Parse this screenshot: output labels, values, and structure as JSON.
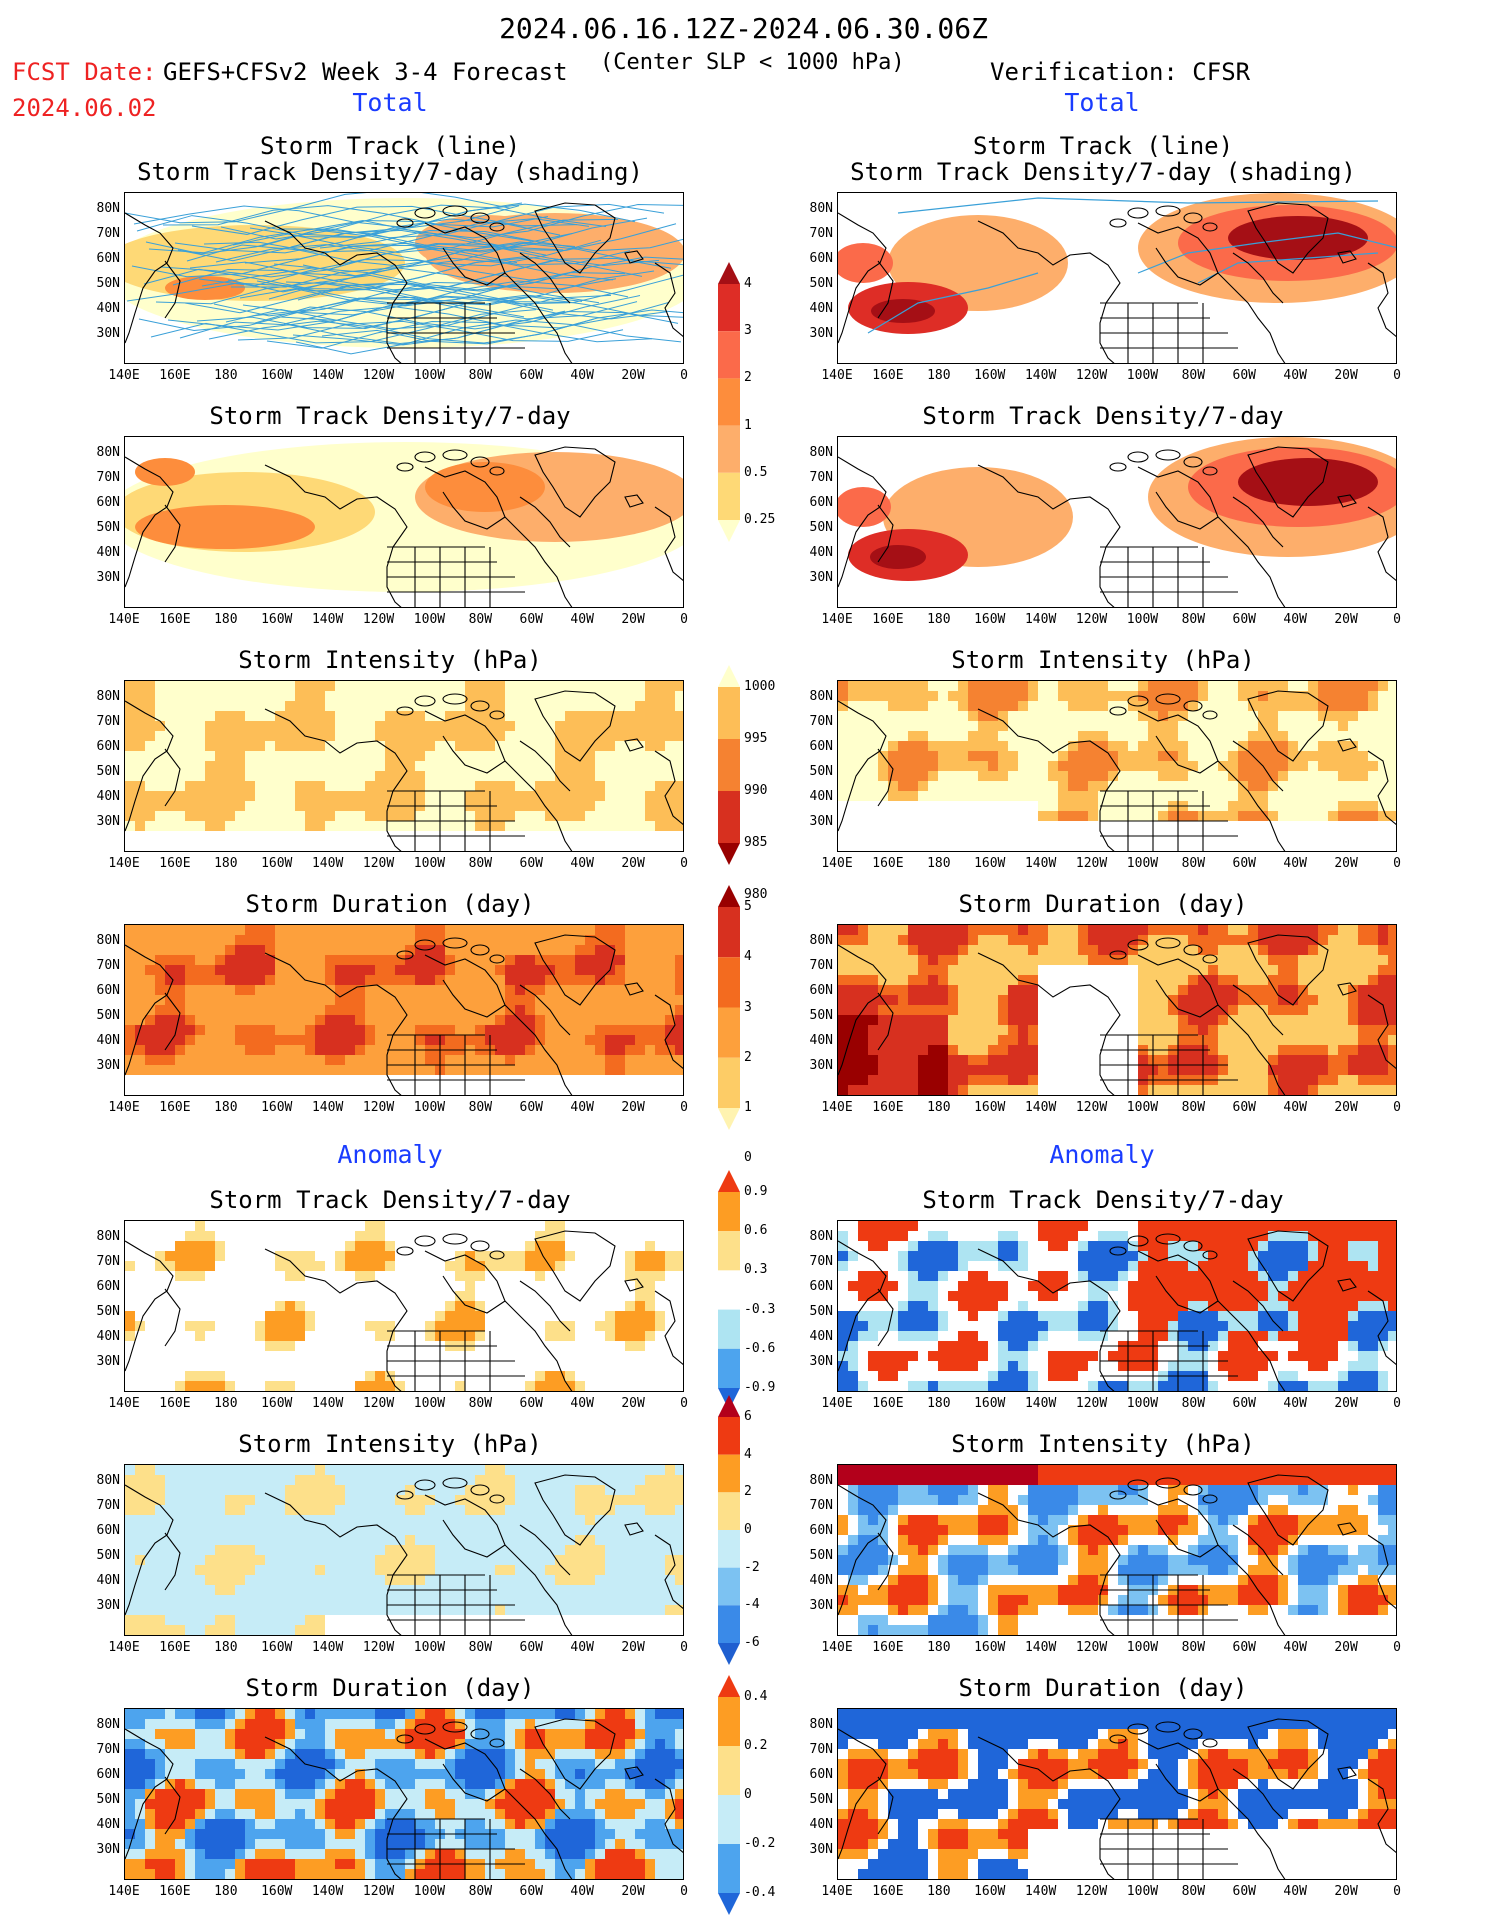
{
  "header": {
    "period": "2024.06.16.12Z-2024.06.30.06Z",
    "criterion": "(Center SLP < 1000 hPa)",
    "fcst_label": "FCST Date:",
    "fcst_model": "GEFS+CFSv2 Week 3-4 Forecast",
    "fcst_date": "2024.06.02",
    "verification": "Verification: CFSR"
  },
  "sections": {
    "total": "Total",
    "anomaly": "Anomaly"
  },
  "panel_titles": {
    "track_line": "Storm Track (line)",
    "track_shading": "Storm Track Density/7-day (shading)",
    "density": "Storm Track Density/7-day",
    "intensity": "Storm Intensity (hPa)",
    "duration": "Storm Duration (day)"
  },
  "axes": {
    "lat_labels": [
      "80N",
      "70N",
      "60N",
      "50N",
      "40N",
      "30N"
    ],
    "lon_labels": [
      "140E",
      "160E",
      "180",
      "160W",
      "140W",
      "120W",
      "100W",
      "80W",
      "60W",
      "40W",
      "20W",
      "0"
    ]
  },
  "colorbars": {
    "density_total": {
      "labels": [
        "4",
        "3",
        "2",
        "1",
        "0.5",
        "0.25"
      ],
      "colors": [
        "#a50f15",
        "#de2d26",
        "#fb6a4a",
        "#fd8d3c",
        "#fdae6b",
        "#fed976",
        "#ffffcc"
      ]
    },
    "intensity_total": {
      "labels": [
        "1000",
        "995",
        "990",
        "985",
        "980"
      ],
      "colors": [
        "#ffffcc",
        "#fdbe57",
        "#f58231",
        "#d7301f",
        "#990000"
      ]
    },
    "duration_total": {
      "labels": [
        "5",
        "4",
        "3",
        "2",
        "1",
        "0"
      ],
      "colors": [
        "#990000",
        "#d7301f",
        "#f36b1f",
        "#fda03c",
        "#fdcc66",
        "#fff3b0"
      ]
    },
    "density_anom": {
      "labels": [
        "0.9",
        "0.6",
        "0.3",
        "-0.3",
        "-0.6",
        "-0.9"
      ],
      "colors": [
        "#ee3a12",
        "#fd9d23",
        "#fde08a",
        "#ffffff",
        "#aee4f2",
        "#4da4ee",
        "#1f66d9"
      ]
    },
    "intensity_anom": {
      "labels": [
        "6",
        "4",
        "2",
        "0",
        "-2",
        "-4",
        "-6"
      ],
      "colors": [
        "#b3001b",
        "#ee3a12",
        "#fd9d23",
        "#fde08a",
        "#c6ecf7",
        "#7cc2f2",
        "#3a8ae8",
        "#1f5fd0"
      ]
    },
    "duration_anom": {
      "labels": [
        "0.4",
        "0.2",
        "0",
        "-0.2",
        "-0.4"
      ],
      "colors": [
        "#ee3a12",
        "#fd9d23",
        "#fde08a",
        "#c6ecf7",
        "#4da4ee",
        "#1f66d9"
      ]
    }
  }
}
